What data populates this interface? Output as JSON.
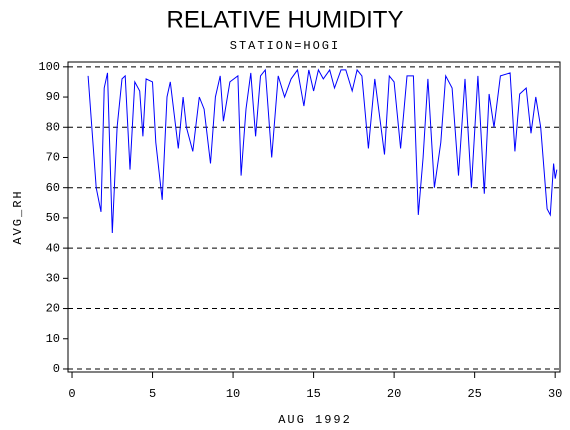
{
  "chart_data": {
    "type": "line",
    "title": "RELATIVE HUMIDITY",
    "subtitle": "STATION=HOGI",
    "x_label": "AUG 1992",
    "y_label": "AVG_RH",
    "x": [
      1,
      1.5,
      1.8,
      2.0,
      2.2,
      2.5,
      2.8,
      3.1,
      3.3,
      3.6,
      3.9,
      4.2,
      4.4,
      4.6,
      5.0,
      5.2,
      5.6,
      5.9,
      6.1,
      6.6,
      6.9,
      7.1,
      7.5,
      7.9,
      8.2,
      8.6,
      8.9,
      9.2,
      9.4,
      9.8,
      10.3,
      10.5,
      10.8,
      11.1,
      11.4,
      11.7,
      12.0,
      12.4,
      12.8,
      13.2,
      13.6,
      14.0,
      14.4,
      14.7,
      15.0,
      15.3,
      15.6,
      16.0,
      16.3,
      16.7,
      17.0,
      17.4,
      17.7,
      18.0,
      18.4,
      18.8,
      19.4,
      19.7,
      20.0,
      20.4,
      20.8,
      21.2,
      21.5,
      21.8,
      22.1,
      22.5,
      22.9,
      23.2,
      23.6,
      24.0,
      24.4,
      24.8,
      25.2,
      25.6,
      25.9,
      26.2,
      26.6,
      27.2,
      27.5,
      27.8,
      28.2,
      28.5,
      28.8,
      29.1,
      29.5,
      29.7,
      29.9,
      30.0,
      30.1
    ],
    "series": [
      {
        "name": "AVG_RH",
        "color": "#0000ff",
        "values": [
          97,
          60,
          52,
          93,
          98,
          45,
          80,
          96,
          97,
          66,
          95,
          92,
          77,
          96,
          95,
          75,
          56,
          90,
          95,
          73,
          90,
          80,
          72,
          90,
          86,
          68,
          90,
          97,
          82,
          95,
          97,
          64,
          86,
          98,
          77,
          97,
          99,
          70,
          97,
          90,
          96,
          99,
          87,
          99,
          92,
          99,
          96,
          99,
          93,
          99,
          99,
          92,
          99,
          97,
          73,
          96,
          71,
          97,
          95,
          73,
          97,
          97,
          51,
          70,
          96,
          60,
          75,
          97,
          93,
          64,
          96,
          60,
          97,
          58,
          91,
          80,
          97,
          98,
          72,
          91,
          93,
          78,
          90,
          80,
          53,
          51,
          68,
          63,
          66
        ]
      }
    ],
    "xlim": [
      -0.25,
      30.3
    ],
    "ylim": [
      -1,
      101.6
    ],
    "xticks": [
      0,
      5,
      10,
      15,
      20,
      25,
      30
    ],
    "yticks": [
      0,
      10,
      20,
      30,
      40,
      50,
      60,
      70,
      80,
      90,
      100
    ],
    "grid_values": [
      0,
      20,
      40,
      60,
      80,
      100
    ]
  }
}
